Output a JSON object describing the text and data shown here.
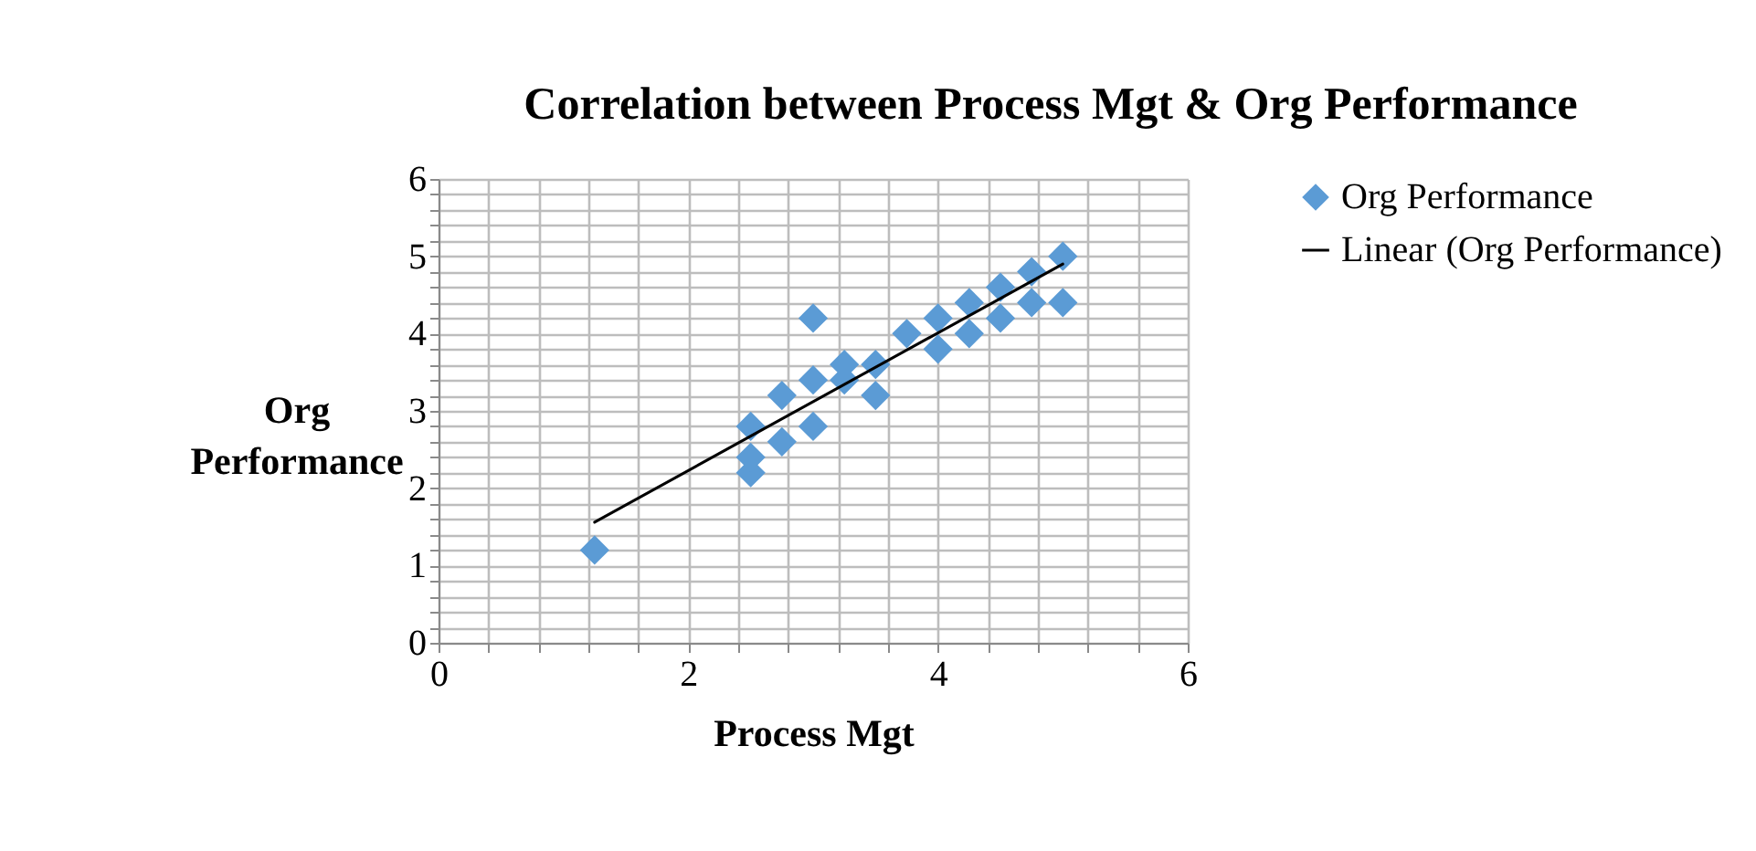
{
  "chart_data": {
    "type": "scatter",
    "title": "Correlation between Process Mgt & Org Performance",
    "xlabel": "Process Mgt",
    "ylabel": "Org Performance",
    "xlim": [
      0,
      6
    ],
    "ylim": [
      0,
      6
    ],
    "xticks": [
      0,
      {
        "value": 0.4,
        "label": null
      },
      {
        "value": 0.8,
        "label": null
      },
      {
        "value": 1.2,
        "label": null
      },
      {
        "value": 1.6,
        "label": null
      },
      2,
      {
        "value": 2.4,
        "label": null
      },
      {
        "value": 2.8,
        "label": null
      },
      {
        "value": 3.2,
        "label": null
      },
      {
        "value": 3.6,
        "label": null
      },
      4,
      {
        "value": 4.4,
        "label": null
      },
      {
        "value": 4.8,
        "label": null
      },
      {
        "value": 5.2,
        "label": null
      },
      {
        "value": 5.6,
        "label": null
      },
      6
    ],
    "yticks": [
      0,
      {
        "value": 0.2,
        "label": null
      },
      {
        "value": 0.4,
        "label": null
      },
      {
        "value": 0.6,
        "label": null
      },
      {
        "value": 0.8,
        "label": null
      },
      1,
      {
        "value": 1.2,
        "label": null
      },
      {
        "value": 1.4,
        "label": null
      },
      {
        "value": 1.6,
        "label": null
      },
      {
        "value": 1.8,
        "label": null
      },
      2,
      {
        "value": 2.2,
        "label": null
      },
      {
        "value": 2.4,
        "label": null
      },
      {
        "value": 2.6,
        "label": null
      },
      {
        "value": 2.8,
        "label": null
      },
      3,
      {
        "value": 3.2,
        "label": null
      },
      {
        "value": 3.4,
        "label": null
      },
      {
        "value": 3.6,
        "label": null
      },
      {
        "value": 3.8,
        "label": null
      },
      4,
      {
        "value": 4.2,
        "label": null
      },
      {
        "value": 4.4,
        "label": null
      },
      {
        "value": 4.6,
        "label": null
      },
      {
        "value": 4.8,
        "label": null
      },
      5,
      {
        "value": 5.2,
        "label": null
      },
      {
        "value": 5.4,
        "label": null
      },
      {
        "value": 5.6,
        "label": null
      },
      {
        "value": 5.8,
        "label": null
      },
      6
    ],
    "grid": true,
    "legend": "right",
    "line_style": "solid",
    "series": [
      {
        "name": "Org Performance",
        "color": "#5b9bd5",
        "marker": "diamond",
        "x": [
          1.25,
          2.5,
          2.5,
          2.5,
          2.75,
          2.75,
          3,
          3,
          3,
          3.25,
          3.25,
          3.5,
          3.5,
          3.75,
          4,
          4,
          4.25,
          4.25,
          4.5,
          4.5,
          4.75,
          4.75,
          5,
          5
        ],
        "values": [
          1.2,
          2.2,
          2.4,
          2.8,
          2.6,
          3.2,
          2.8,
          3.4,
          4.2,
          3.4,
          3.6,
          3.2,
          3.6,
          4.0,
          3.8,
          4.2,
          4.0,
          4.4,
          4.2,
          4.6,
          4.4,
          4.8,
          4.4,
          5.0
        ]
      },
      {
        "name": "Linear (Org Performance)",
        "type": "line",
        "color": "#000000",
        "marker": "none",
        "x": [
          1.25,
          5
        ],
        "values": [
          1.56,
          4.9
        ]
      }
    ]
  }
}
